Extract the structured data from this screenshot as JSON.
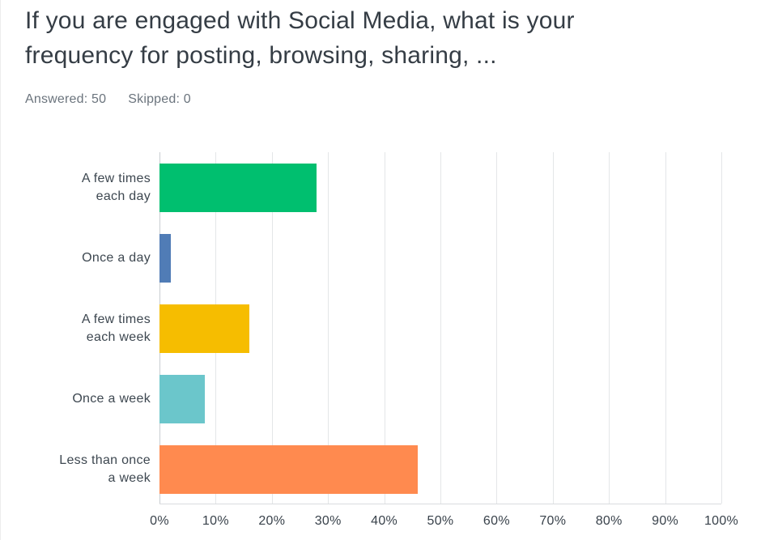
{
  "header": {
    "title_line1": "If you are engaged with Social Media, what is your",
    "title_line2": "frequency for posting, browsing, sharing, ...",
    "answered": "Answered: 50",
    "skipped": "Skipped: 0"
  },
  "chart_data": {
    "type": "bar",
    "orientation": "horizontal",
    "title": "If you are engaged with Social Media, what is your frequency for posting, browsing, sharing, ...",
    "categories": [
      "A few times\neach day",
      "Once a day",
      "A few times\neach week",
      "Once a week",
      "Less than once\na week"
    ],
    "values": [
      28,
      2,
      16,
      8,
      46
    ],
    "unit": "%",
    "colors": [
      "#00BF6F",
      "#507CB6",
      "#F6BD00",
      "#6BC6CB",
      "#FF8A4F"
    ],
    "xlabel": "",
    "ylabel": "",
    "xlim": [
      0,
      100
    ],
    "x_ticks": [
      "0%",
      "10%",
      "20%",
      "30%",
      "40%",
      "50%",
      "60%",
      "70%",
      "80%",
      "90%",
      "100%"
    ],
    "grid": true,
    "legend": false,
    "answered_count": 50,
    "skipped_count": 0
  }
}
